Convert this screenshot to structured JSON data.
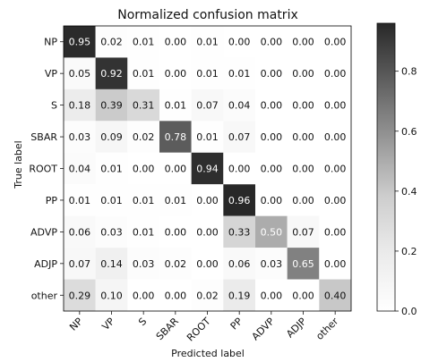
{
  "chart_data": {
    "type": "heatmap",
    "title": "Normalized confusion matrix",
    "xlabel": "Predicted label",
    "ylabel": "True label",
    "x_categories": [
      "NP",
      "VP",
      "S",
      "SBAR",
      "ROOT",
      "PP",
      "ADVP",
      "ADJP",
      "other"
    ],
    "y_categories": [
      "NP",
      "VP",
      "S",
      "SBAR",
      "ROOT",
      "PP",
      "ADVP",
      "ADJP",
      "other"
    ],
    "values": [
      [
        0.95,
        0.02,
        0.01,
        0.0,
        0.01,
        0.0,
        0.0,
        0.0,
        0.0
      ],
      [
        0.05,
        0.92,
        0.01,
        0.0,
        0.01,
        0.01,
        0.0,
        0.0,
        0.0
      ],
      [
        0.18,
        0.39,
        0.31,
        0.01,
        0.07,
        0.04,
        0.0,
        0.0,
        0.0
      ],
      [
        0.03,
        0.09,
        0.02,
        0.78,
        0.01,
        0.07,
        0.0,
        0.0,
        0.0
      ],
      [
        0.04,
        0.01,
        0.0,
        0.0,
        0.94,
        0.0,
        0.0,
        0.0,
        0.0
      ],
      [
        0.01,
        0.01,
        0.01,
        0.01,
        0.0,
        0.96,
        0.0,
        0.0,
        0.0
      ],
      [
        0.06,
        0.03,
        0.01,
        0.0,
        0.0,
        0.33,
        0.5,
        0.07,
        0.0
      ],
      [
        0.07,
        0.14,
        0.03,
        0.02,
        0.0,
        0.06,
        0.03,
        0.65,
        0.0
      ],
      [
        0.29,
        0.1,
        0.0,
        0.0,
        0.02,
        0.19,
        0.0,
        0.0,
        0.4
      ]
    ],
    "colorbar": {
      "range": [
        0.0,
        0.96
      ],
      "ticks": [
        "0.0",
        "0.2",
        "0.4",
        "0.6",
        "0.8"
      ],
      "colormap": "greys"
    },
    "text_threshold": 0.48
  }
}
